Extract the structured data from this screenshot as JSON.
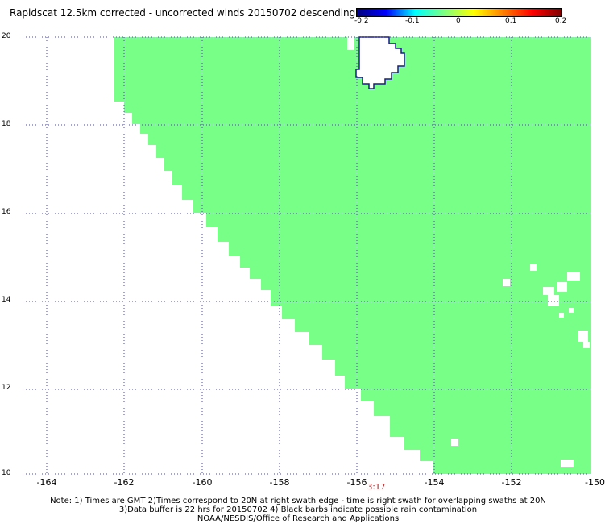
{
  "title": "Rapidscat 12.5km corrected - uncorrected winds 20150702 descending",
  "colorbar": {
    "ticks": [
      "-0.2",
      "-0.1",
      "0",
      "0.1",
      "0.2"
    ],
    "colors": [
      "#00007f",
      "#0000ff",
      "#00ffff",
      "#7fff7f",
      "#ffff00",
      "#ff7f00",
      "#ff0000",
      "#7f0000"
    ]
  },
  "map": {
    "lon_range": [
      -165,
      -150
    ],
    "lat_range": [
      10,
      20
    ],
    "lat_labels": [
      "20",
      "18",
      "16",
      "14",
      "12",
      "10"
    ],
    "lon_labels": [
      "-164",
      "-162",
      "-160",
      "-158",
      "-156",
      "-154",
      "-152",
      "-150"
    ],
    "swath_color": "#77ff88",
    "coastline_color": "#1a1a8c",
    "grid": "dotted"
  },
  "time_label": "3:17",
  "notes": {
    "line1": "Note: 1) Times are GMT 2)Times correspond to 20N at right swath edge - time is right swath for overlapping swaths at 20N",
    "line2": "3)Data buffer is 22 hrs for 20150702 4) Black barbs indicate possible rain contamination",
    "line3": "NOAA/NESDIS/Office of Research and Applications"
  }
}
